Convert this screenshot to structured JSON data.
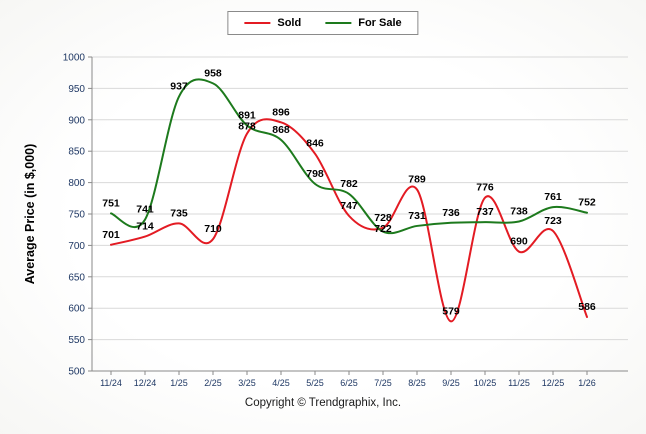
{
  "chart_data": {
    "type": "line",
    "title": "",
    "xlabel": "",
    "ylabel": "Average Price (in $,000)",
    "ylim": [
      500,
      1000
    ],
    "ytick_step": 50,
    "grid": true,
    "legend_position": "top-center",
    "categories": [
      "11/24",
      "12/24",
      "1/25",
      "2/25",
      "3/25",
      "4/25",
      "5/25",
      "6/25",
      "7/25",
      "8/25",
      "9/25",
      "10/25",
      "11/25",
      "12/25",
      "1/26"
    ],
    "series": [
      {
        "name": "Sold",
        "color": "#e31b23",
        "values": [
          701,
          714,
          735,
          710,
          878,
          896,
          846,
          747,
          728,
          789,
          579,
          776,
          690,
          723,
          586
        ]
      },
      {
        "name": "For Sale",
        "color": "#1d7a1d",
        "values": [
          751,
          741,
          937,
          958,
          891,
          868,
          798,
          782,
          722,
          731,
          736,
          737,
          738,
          761,
          752
        ]
      }
    ]
  },
  "footer": {
    "copyright": "Copyright © Trendgraphix, Inc."
  },
  "style": {
    "grid_color": "#d9d9d9",
    "axis_color": "#8a8a8a",
    "tick_label_color": "#1f3864",
    "data_label_color": "#000000"
  }
}
